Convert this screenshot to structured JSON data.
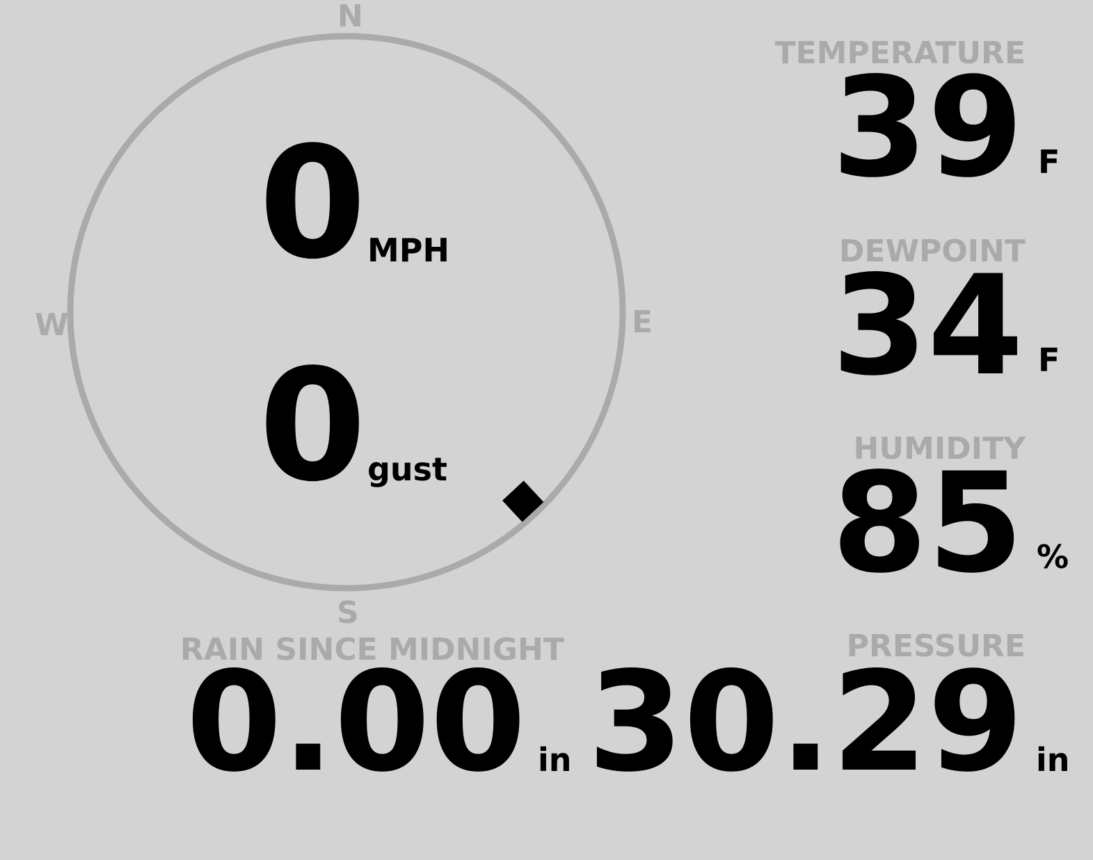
{
  "wind": {
    "speed": "0",
    "speed_unit": "MPH",
    "gust": "0",
    "gust_label": "gust",
    "direction_degrees": 137,
    "compass": {
      "n": "N",
      "e": "E",
      "s": "S",
      "w": "W"
    }
  },
  "temperature": {
    "label": "TEMPERATURE",
    "value": "39",
    "unit": "F"
  },
  "dewpoint": {
    "label": "DEWPOINT",
    "value": "34",
    "unit": "F"
  },
  "humidity": {
    "label": "HUMIDITY",
    "value": "85",
    "unit": "%"
  },
  "rain": {
    "label": "RAIN SINCE MIDNIGHT",
    "value": "0.00",
    "unit": "in"
  },
  "pressure": {
    "label": "PRESSURE",
    "value": "30.29",
    "unit": "in"
  },
  "colors": {
    "background": "#d3d3d3",
    "label": "#aaaaaa",
    "value": "#000000"
  }
}
